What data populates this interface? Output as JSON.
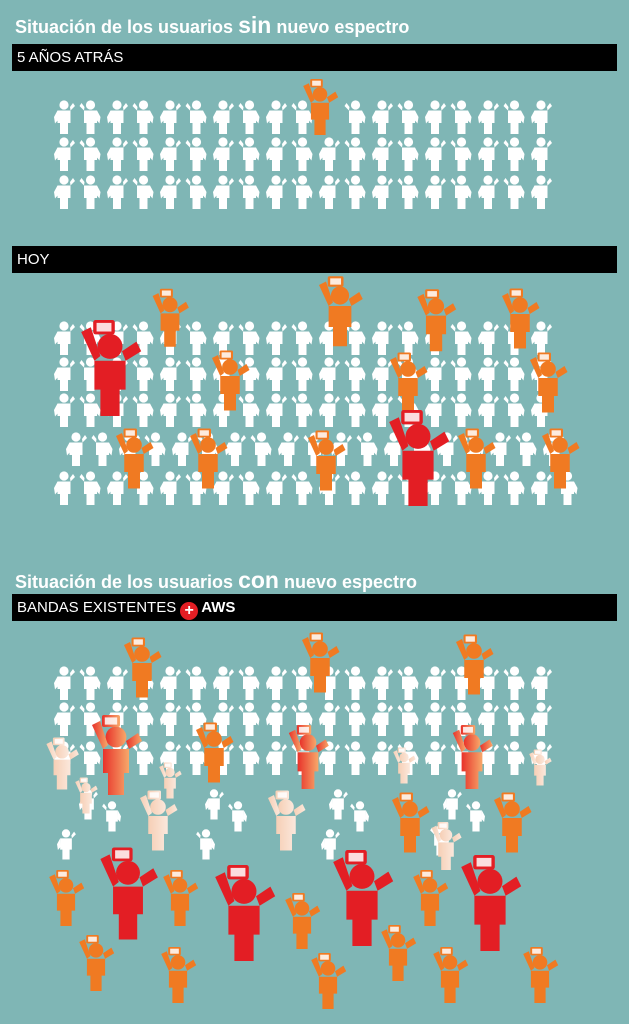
{
  "section1": {
    "title_pre": "Situación de los usuarios",
    "title_key": "sin",
    "title_post": "nuevo espectro",
    "bar1": "5 AÑOS ATRÁS",
    "bar2": "HOY"
  },
  "section2": {
    "title_pre": "Situación de los usuarios",
    "title_key": "con",
    "title_post": "nuevo espectro",
    "bar_pre": "BANDAS EXISTENTES",
    "plus_symbol": "+",
    "bar_post": "AWS"
  },
  "colors": {
    "background": "#7fb6b5",
    "idle_user": "#ffffff",
    "active_user": "#f07a22",
    "heavy_user": "#e31e24",
    "light_user": "#f6cfb5"
  },
  "icons": [
    "person-icon",
    "person-phone-icon"
  ]
}
